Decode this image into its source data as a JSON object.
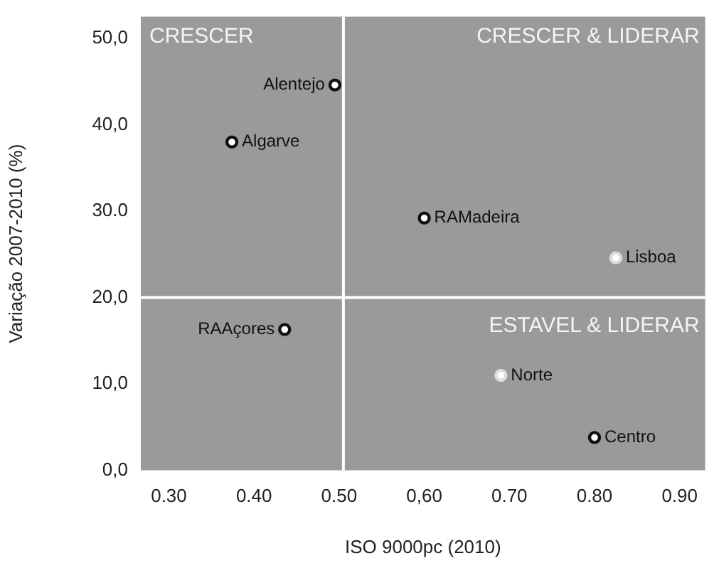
{
  "chart_data": {
    "type": "scatter",
    "xlabel": "ISO 9000pc (2010)",
    "ylabel": "Variação 2007-2010 (%)",
    "xlim": [
      0.267,
      0.93
    ],
    "ylim": [
      0,
      52.5
    ],
    "xticks": [
      {
        "value": 0.3,
        "label": "0.30"
      },
      {
        "value": 0.4,
        "label": "0.40"
      },
      {
        "value": 0.5,
        "label": "0.50"
      },
      {
        "value": 0.6,
        "label": "0,60"
      },
      {
        "value": 0.7,
        "label": "0.70"
      },
      {
        "value": 0.8,
        "label": "0.80"
      },
      {
        "value": 0.9,
        "label": "0.90"
      }
    ],
    "yticks": [
      {
        "value": 0,
        "label": "0,0"
      },
      {
        "value": 10,
        "label": "10,0"
      },
      {
        "value": 20,
        "label": "20,0"
      },
      {
        "value": 30,
        "label": "30.0"
      },
      {
        "value": 40,
        "label": "40,0"
      },
      {
        "value": 50,
        "label": "50,0"
      }
    ],
    "series": [
      {
        "name": "Alentejo",
        "color": "#111111",
        "x": [
          0.495
        ],
        "values": [
          44.6
        ]
      },
      {
        "name": "Algarve",
        "color": "#111111",
        "x": [
          0.374
        ],
        "values": [
          38.0
        ]
      },
      {
        "name": "RAMadeira",
        "color": "#111111",
        "x": [
          0.6
        ],
        "values": [
          29.2
        ]
      },
      {
        "name": "Lisboa",
        "color": "#dddddd",
        "x": [
          0.825
        ],
        "values": [
          24.6
        ]
      },
      {
        "name": "RAAçores",
        "color": "#111111",
        "x": [
          0.436
        ],
        "values": [
          16.3
        ]
      },
      {
        "name": "Norte",
        "color": "#dddddd",
        "x": [
          0.69
        ],
        "values": [
          11.0
        ]
      },
      {
        "name": "Centro",
        "color": "#111111",
        "x": [
          0.8
        ],
        "values": [
          3.8
        ]
      }
    ],
    "ref_lines": [
      {
        "axis": "x",
        "value": 0.505,
        "color": "#ffffff"
      },
      {
        "axis": "y",
        "value": 20,
        "color": "#ffffff"
      }
    ],
    "annotations": [
      "CRESCER",
      "CRESCER & LIDERAR",
      "ESTAVEL & LIDERAR"
    ],
    "marker": "circle",
    "grid": false,
    "legend": false
  }
}
